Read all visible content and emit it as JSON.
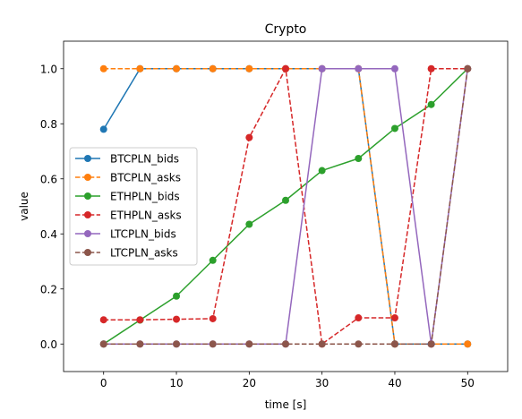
{
  "chart_data": {
    "type": "line",
    "title": "Crypto",
    "xlabel": "time [s]",
    "ylabel": "value",
    "xlim": [
      -5.5,
      55.5
    ],
    "ylim": [
      -0.1,
      1.1
    ],
    "xticks": [
      0,
      10,
      20,
      30,
      40,
      50
    ],
    "yticks": [
      0.0,
      0.2,
      0.4,
      0.6,
      0.8,
      1.0
    ],
    "xtick_labels": [
      "0",
      "10",
      "20",
      "30",
      "40",
      "50"
    ],
    "ytick_labels": [
      "0.0",
      "0.2",
      "0.4",
      "0.6",
      "0.8",
      "1.0"
    ],
    "grid": false,
    "legend_position": "center-left",
    "x": [
      0,
      5,
      10,
      15,
      20,
      25,
      30,
      35,
      40,
      45,
      50
    ],
    "series": [
      {
        "name": "BTCPLN_bids",
        "color": "#1f77b4",
        "dash": "solid",
        "values": [
          0.78,
          1.0,
          1.0,
          1.0,
          1.0,
          1.0,
          1.0,
          1.0,
          0.0,
          0.0,
          0.0
        ]
      },
      {
        "name": "BTCPLN_asks",
        "color": "#ff7f0e",
        "dash": "dashed",
        "values": [
          1.0,
          1.0,
          1.0,
          1.0,
          1.0,
          1.0,
          1.0,
          1.0,
          0.0,
          0.0,
          0.0
        ]
      },
      {
        "name": "ETHPLN_bids",
        "color": "#2ca02c",
        "dash": "solid",
        "values": [
          0.0,
          0.087,
          0.174,
          0.304,
          0.435,
          0.522,
          0.63,
          0.674,
          0.783,
          0.87,
          1.0
        ]
      },
      {
        "name": "ETHPLN_asks",
        "color": "#d62728",
        "dash": "dashed",
        "values": [
          0.088,
          0.088,
          0.09,
          0.092,
          0.75,
          1.0,
          0.0,
          0.095,
          0.095,
          1.0,
          1.0
        ]
      },
      {
        "name": "LTCPLN_bids",
        "color": "#9467bd",
        "dash": "solid",
        "values": [
          0.0,
          0.0,
          0.0,
          0.0,
          0.0,
          0.0,
          1.0,
          1.0,
          1.0,
          0.0,
          1.0
        ]
      },
      {
        "name": "LTCPLN_asks",
        "color": "#8c564b",
        "dash": "dashed",
        "values": [
          0.0,
          0.0,
          0.0,
          0.0,
          0.0,
          0.0,
          0.0,
          0.0,
          0.0,
          0.0,
          1.0
        ]
      }
    ]
  }
}
